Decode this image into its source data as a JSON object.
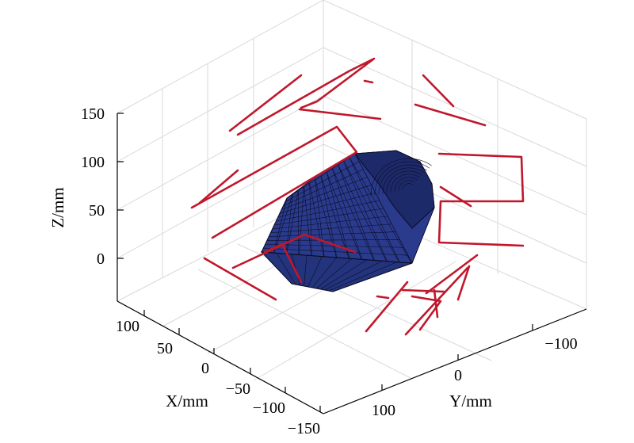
{
  "chart_data": {
    "type": "3d-surface-with-wireframe",
    "z_axis": {
      "label": "Z/mm",
      "ticks": [
        "0",
        "50",
        "100",
        "150"
      ]
    },
    "x_axis": {
      "label": "X/mm",
      "ticks": [
        "100",
        "50",
        "0",
        "−50",
        "−100",
        "−150"
      ]
    },
    "y_axis": {
      "label": "Y/mm",
      "ticks": [
        "100",
        "0",
        "−100"
      ]
    },
    "grid": true,
    "colors": {
      "surface": "#2a3a8c",
      "wireframe": "#c0172b",
      "grid": "#d9d9d9"
    }
  }
}
